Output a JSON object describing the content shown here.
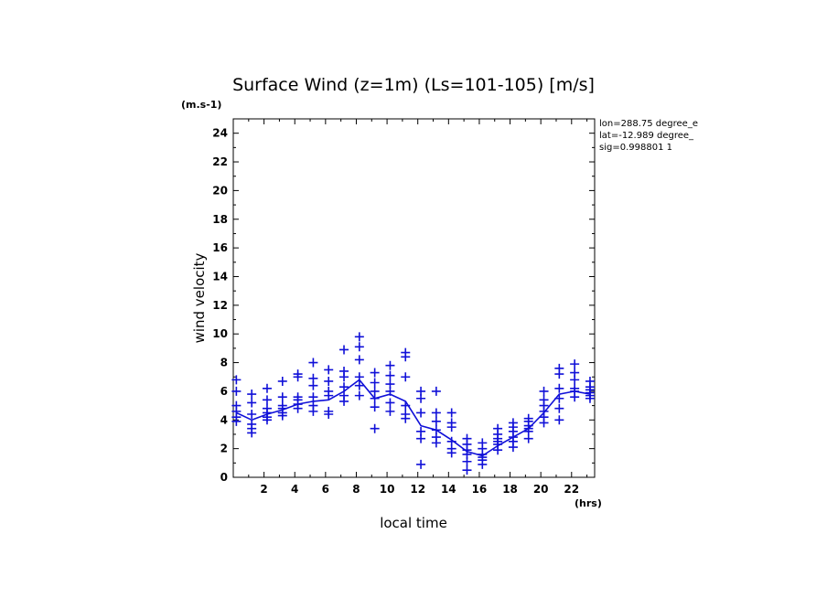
{
  "chart_data": {
    "type": "scatter",
    "title": "Surface Wind (z=1m) (Ls=101-105) [m/s]",
    "y_units": "(m.s-1)",
    "xlabel": "local time",
    "x_units": "(hrs)",
    "ylabel": "wind velocity",
    "xlim": [
      0,
      23.5
    ],
    "ylim": [
      0,
      25
    ],
    "x_ticks": [
      "2",
      "4",
      "6",
      "8",
      "10",
      "12",
      "14",
      "16",
      "18",
      "20",
      "22"
    ],
    "y_ticks": [
      "0",
      "2",
      "4",
      "6",
      "8",
      "10",
      "12",
      "14",
      "16",
      "18",
      "20",
      "22",
      "24"
    ],
    "info": [
      "lon=288.75 degree_e",
      "lat=-12.989 degree_",
      "sig=0.998801 1"
    ],
    "color": "#1010d8",
    "mean_line": {
      "name": "mean",
      "x": [
        0.2,
        1.2,
        2.2,
        3.2,
        4.2,
        5.2,
        6.2,
        7.2,
        8.2,
        9.2,
        10.2,
        11.2,
        12.2,
        13.2,
        14.2,
        15.2,
        16.2,
        17.2,
        18.2,
        19.2,
        20.2,
        21.2,
        22.2,
        23.2
      ],
      "y": [
        4.5,
        4.0,
        4.4,
        4.7,
        5.1,
        5.3,
        5.4,
        6.0,
        6.8,
        5.5,
        5.8,
        5.3,
        3.6,
        3.3,
        2.6,
        1.8,
        1.5,
        2.2,
        2.8,
        3.4,
        4.5,
        5.8,
        6.0,
        5.8
      ]
    },
    "points": {
      "name": "samples",
      "x": [
        0.2,
        0.2,
        0.2,
        0.2,
        0.2,
        0.2,
        1.2,
        1.2,
        1.2,
        1.2,
        1.2,
        1.2,
        2.2,
        2.2,
        2.2,
        2.2,
        2.2,
        2.2,
        3.2,
        3.2,
        3.2,
        3.2,
        3.2,
        3.2,
        4.2,
        4.2,
        4.2,
        4.2,
        4.2,
        4.2,
        5.2,
        5.2,
        5.2,
        5.2,
        5.2,
        5.2,
        6.2,
        6.2,
        6.2,
        6.2,
        6.2,
        6.2,
        7.2,
        7.2,
        7.2,
        7.2,
        7.2,
        7.2,
        8.2,
        8.2,
        8.2,
        8.2,
        8.2,
        8.2,
        9.2,
        9.2,
        9.2,
        9.2,
        9.2,
        9.2,
        10.2,
        10.2,
        10.2,
        10.2,
        10.2,
        10.2,
        11.2,
        11.2,
        11.2,
        11.2,
        11.2,
        11.2,
        12.2,
        12.2,
        12.2,
        12.2,
        12.2,
        12.2,
        13.2,
        13.2,
        13.2,
        13.2,
        13.2,
        13.2,
        14.2,
        14.2,
        14.2,
        14.2,
        14.2,
        14.2,
        15.2,
        15.2,
        15.2,
        15.2,
        15.2,
        15.2,
        16.2,
        16.2,
        16.2,
        16.2,
        16.2,
        16.2,
        17.2,
        17.2,
        17.2,
        17.2,
        17.2,
        17.2,
        18.2,
        18.2,
        18.2,
        18.2,
        18.2,
        18.2,
        19.2,
        19.2,
        19.2,
        19.2,
        19.2,
        19.2,
        20.2,
        20.2,
        20.2,
        20.2,
        20.2,
        20.2,
        21.2,
        21.2,
        21.2,
        21.2,
        21.2,
        21.2,
        22.2,
        22.2,
        22.2,
        22.2,
        22.2,
        22.2,
        23.2,
        23.2,
        23.2,
        23.2,
        23.2,
        23.2
      ],
      "y": [
        6.8,
        6.0,
        5.0,
        4.6,
        4.2,
        3.9,
        5.8,
        5.2,
        4.4,
        3.7,
        3.4,
        3.1,
        6.2,
        5.4,
        4.8,
        4.5,
        4.2,
        4.0,
        6.7,
        5.6,
        5.0,
        4.8,
        4.5,
        4.3,
        7.2,
        7.0,
        5.6,
        5.4,
        5.1,
        4.8,
        8.0,
        6.9,
        6.4,
        5.6,
        5.0,
        4.6,
        7.5,
        6.7,
        6.0,
        5.7,
        4.6,
        4.4,
        8.9,
        7.4,
        7.0,
        6.3,
        5.7,
        5.3,
        9.8,
        9.1,
        8.2,
        7.0,
        6.4,
        5.7,
        7.3,
        6.6,
        6.0,
        5.5,
        4.9,
        3.4,
        7.8,
        7.1,
        6.5,
        6.0,
        5.2,
        4.6,
        8.7,
        8.4,
        7.0,
        5.0,
        4.4,
        4.1,
        6.0,
        5.5,
        4.5,
        3.2,
        2.7,
        0.9,
        6.0,
        4.5,
        3.9,
        3.3,
        2.8,
        2.4,
        4.5,
        3.8,
        3.5,
        2.5,
        2.0,
        1.7,
        2.7,
        2.3,
        1.9,
        1.6,
        1.1,
        0.5,
        2.4,
        2.0,
        1.6,
        1.4,
        1.2,
        0.9,
        3.4,
        3.0,
        2.7,
        2.5,
        2.3,
        1.9,
        3.8,
        3.5,
        3.2,
        2.8,
        2.5,
        2.1,
        4.1,
        3.9,
        3.6,
        3.4,
        3.2,
        2.7,
        6.0,
        5.4,
        5.0,
        4.6,
        4.2,
        3.8,
        7.6,
        7.2,
        6.2,
        5.5,
        4.8,
        4.0,
        7.9,
        7.3,
        6.8,
        6.2,
        6.0,
        5.6,
        6.7,
        6.3,
        6.1,
        5.9,
        5.7,
        5.5
      ]
    }
  }
}
